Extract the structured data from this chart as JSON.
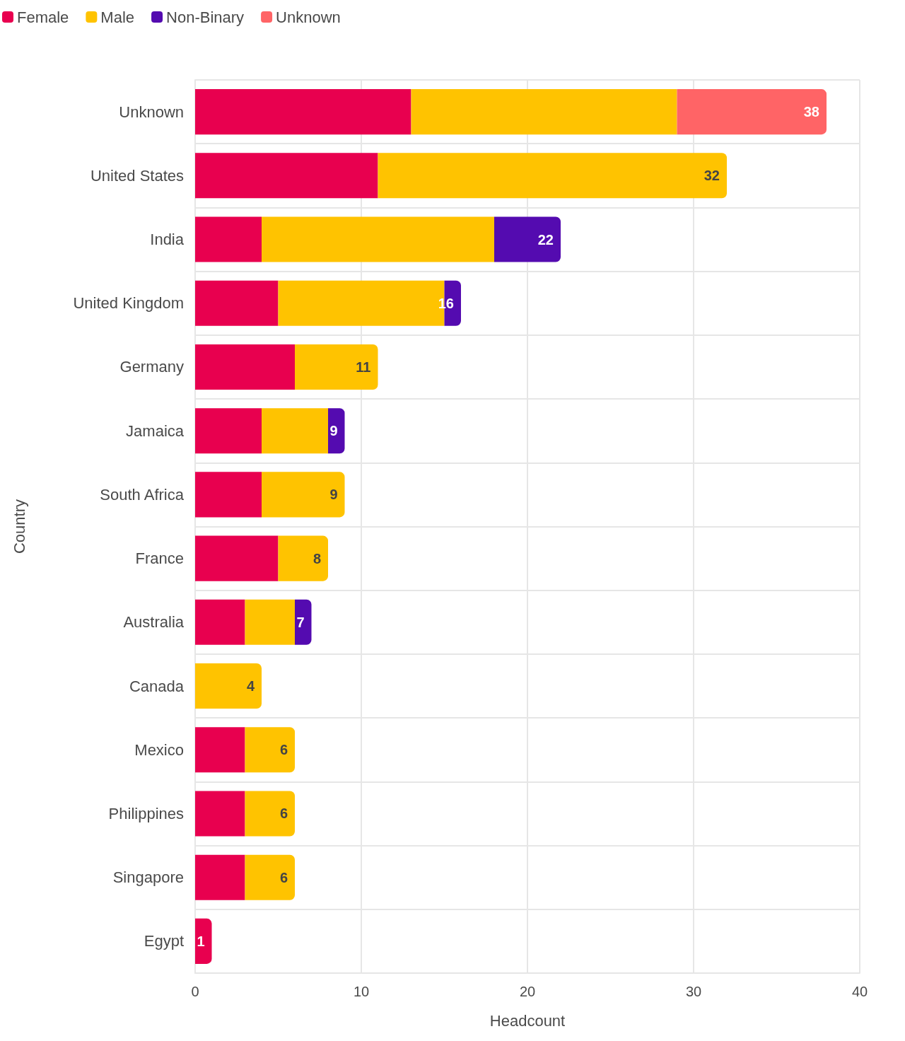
{
  "chart_data": {
    "type": "bar",
    "orientation": "horizontal",
    "stacked": true,
    "categories": [
      "Unknown",
      "United States",
      "India",
      "United Kingdom",
      "Germany",
      "Jamaica",
      "South Africa",
      "France",
      "Australia",
      "Canada",
      "Mexico",
      "Philippines",
      "Singapore",
      "Egypt"
    ],
    "series": [
      {
        "name": "Female",
        "color": "#e8004f",
        "values": [
          13,
          11,
          4,
          5,
          6,
          4,
          4,
          5,
          3,
          null,
          3,
          3,
          3,
          1
        ]
      },
      {
        "name": "Male",
        "color": "#ffc300",
        "values": [
          16,
          21,
          14,
          10,
          5,
          4,
          5,
          3,
          3,
          4,
          3,
          3,
          3,
          null
        ]
      },
      {
        "name": "Non-Binary",
        "color": "#540bb0",
        "values": [
          null,
          null,
          4,
          1,
          null,
          1,
          null,
          null,
          1,
          null,
          null,
          null,
          null,
          null
        ]
      },
      {
        "name": "Unknown",
        "color": "#ff6466",
        "values": [
          9,
          null,
          null,
          null,
          null,
          null,
          null,
          null,
          null,
          null,
          null,
          null,
          null,
          null
        ]
      }
    ],
    "totals": [
      "38",
      "32",
      "22",
      "16",
      "11",
      "9",
      "9",
      "8",
      "7",
      "4",
      "6",
      "6",
      "6",
      "1"
    ],
    "xlim": [
      0,
      40
    ],
    "xticks": [
      0,
      10,
      20,
      30,
      40
    ],
    "xlabel": "Headcount",
    "ylabel": "Country",
    "grid": true,
    "legend": "top left"
  }
}
